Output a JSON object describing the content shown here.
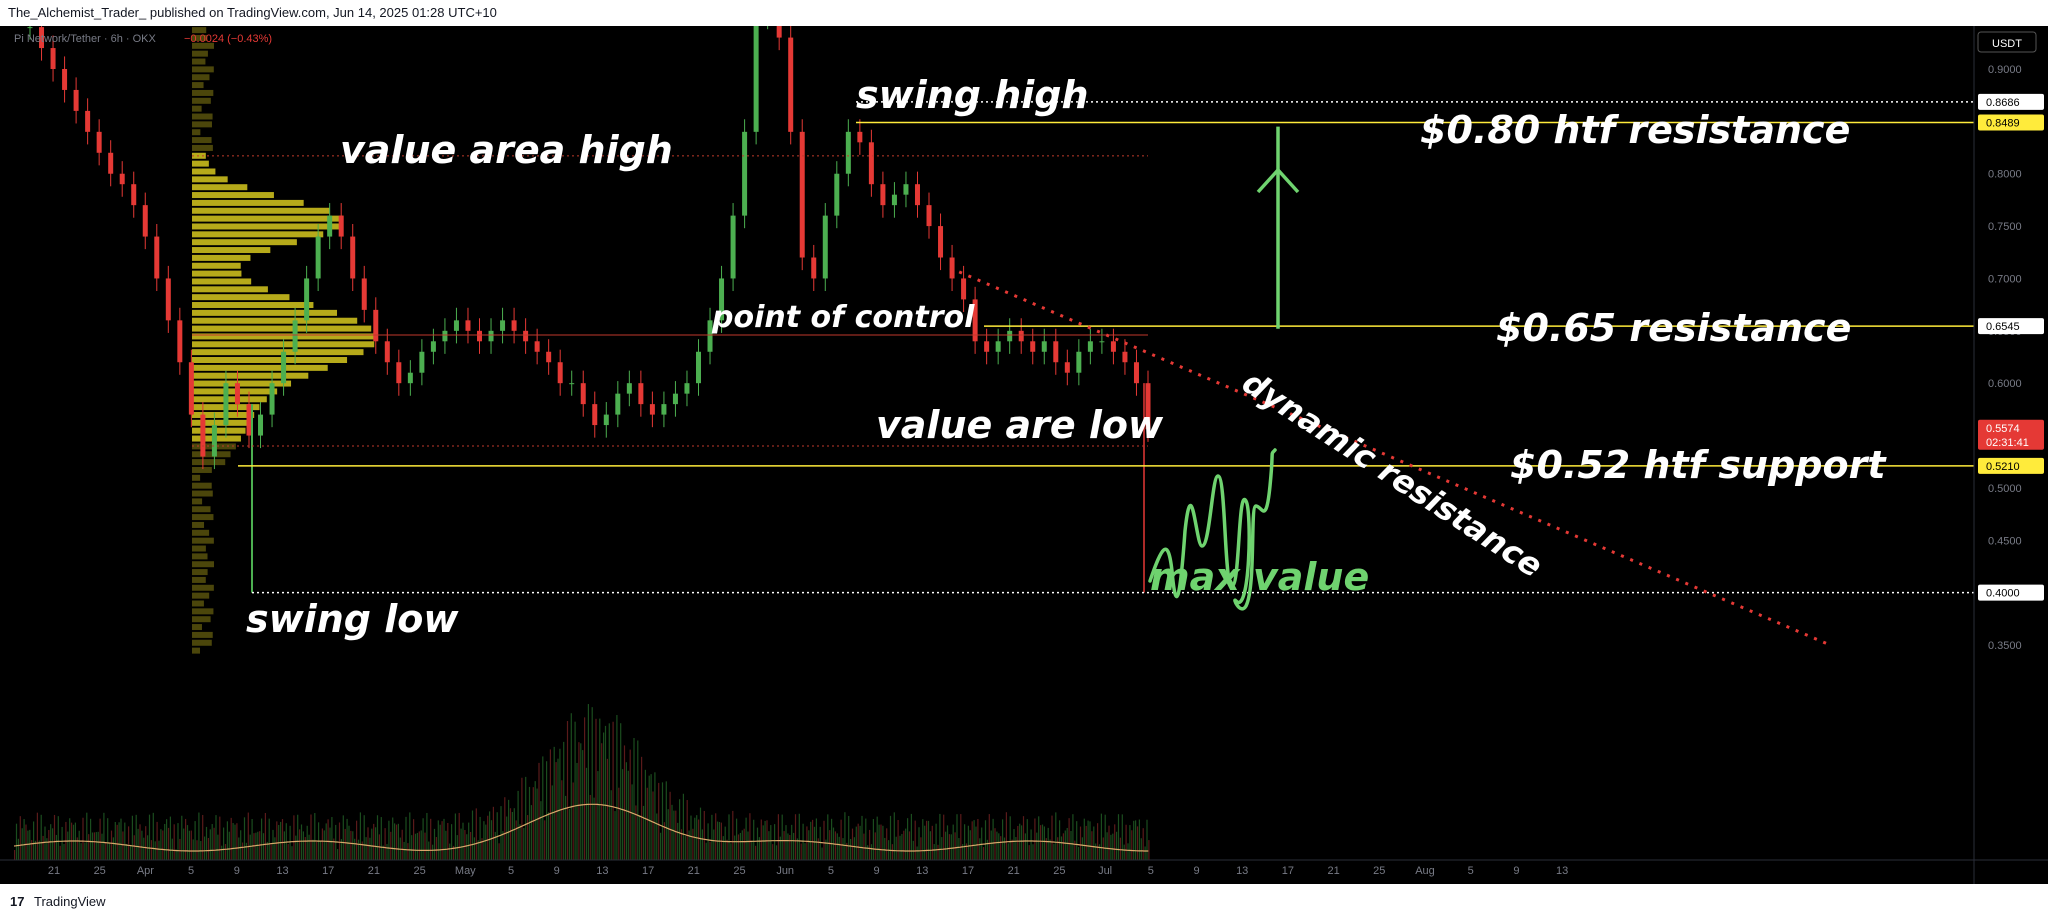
{
  "header": {
    "published_text": "The_Alchemist_Trader_ published on TradingView.com, Jun 14, 2025 01:28 UTC+10"
  },
  "footer": {
    "logo_glyph": "17",
    "brand": "TradingView"
  },
  "chart_data": {
    "type": "candlestick",
    "symbol_line": "Pi Network/Tether · 6h · OKX",
    "change_text": "−0.0024 (−0.43%)",
    "currency_label": "USDT",
    "colors": {
      "up": "#4caf50",
      "down": "#e53935",
      "level_line": "#ffeb3b",
      "annotation": "#ffffff",
      "projection": "#6fd36f",
      "profile": "#d6c81f",
      "last_price_bg": "#e53935"
    },
    "x_ticks": [
      "21",
      "25",
      "Apr",
      "5",
      "9",
      "13",
      "17",
      "21",
      "25",
      "May",
      "5",
      "9",
      "13",
      "17",
      "21",
      "25",
      "Jun",
      "5",
      "9",
      "13",
      "17",
      "21",
      "25",
      "Jul",
      "5",
      "9",
      "13",
      "17",
      "21",
      "25",
      "Aug",
      "5",
      "9",
      "13"
    ],
    "month_ticks": [
      "Apr",
      "May",
      "Jun",
      "Jul",
      "Aug"
    ],
    "y_ticks": [
      0.35,
      0.4,
      0.45,
      0.5,
      0.55,
      0.6,
      0.65,
      0.7,
      0.75,
      0.8,
      0.85,
      0.9
    ],
    "y_tick_labels": [
      "0.3500",
      "0.4000",
      "0.4500",
      "0.5000",
      "0.5500",
      "0.6000",
      "0.6500",
      "0.7000",
      "0.7500",
      "0.8000",
      "0.8500",
      "0.9000"
    ],
    "ylim": [
      0.34,
      0.95
    ],
    "price_labels": [
      {
        "value": 0.8686,
        "text": "0.8686",
        "style": "white"
      },
      {
        "value": 0.8489,
        "text": "0.8489",
        "style": "yellow"
      },
      {
        "value": 0.6545,
        "text": "0.6545",
        "style": "white"
      },
      {
        "value": 0.5574,
        "text": "0.5574",
        "sub": "02:31:41",
        "style": "red"
      },
      {
        "value": 0.521,
        "text": "0.5210",
        "style": "yellow"
      },
      {
        "value": 0.4,
        "text": "0.4000",
        "style": "white"
      }
    ],
    "levels": [
      {
        "name": "$0.80 htf resistance",
        "value": 0.8489
      },
      {
        "name": "$0.65 resistance",
        "value": 0.6545
      },
      {
        "name": "$0.52 htf support",
        "value": 0.521
      }
    ],
    "annotations": [
      {
        "text": "swing high",
        "value": 0.868
      },
      {
        "text": "value area high",
        "value": 0.817
      },
      {
        "text": "point of control",
        "value": 0.647
      },
      {
        "text": "value are low",
        "value": 0.54
      },
      {
        "text": "swing low",
        "value": 0.4
      },
      {
        "text": "dynamic resistance",
        "value": 0.58
      },
      {
        "text": "max value",
        "value": 0.42
      }
    ],
    "ohlc_sample": [
      0.94,
      0.92,
      0.9,
      0.88,
      0.86,
      0.84,
      0.82,
      0.8,
      0.79,
      0.77,
      0.74,
      0.7,
      0.66,
      0.62,
      0.57,
      0.53,
      0.56,
      0.6,
      0.58,
      0.55,
      0.57,
      0.6,
      0.63,
      0.66,
      0.7,
      0.74,
      0.76,
      0.74,
      0.7,
      0.67,
      0.64,
      0.62,
      0.6,
      0.61,
      0.63,
      0.64,
      0.65,
      0.66,
      0.65,
      0.64,
      0.65,
      0.66,
      0.65,
      0.64,
      0.63,
      0.62,
      0.6,
      0.6,
      0.58,
      0.56,
      0.57,
      0.59,
      0.6,
      0.58,
      0.57,
      0.58,
      0.59,
      0.6,
      0.63,
      0.66,
      0.7,
      0.76,
      0.84,
      0.95,
      0.95,
      0.93,
      0.84,
      0.72,
      0.7,
      0.76,
      0.8,
      0.84,
      0.83,
      0.79,
      0.77,
      0.78,
      0.79,
      0.77,
      0.75,
      0.72,
      0.7,
      0.68,
      0.64,
      0.63,
      0.64,
      0.65,
      0.64,
      0.63,
      0.64,
      0.62,
      0.61,
      0.63,
      0.64,
      0.64,
      0.63,
      0.62,
      0.6,
      0.556
    ]
  }
}
